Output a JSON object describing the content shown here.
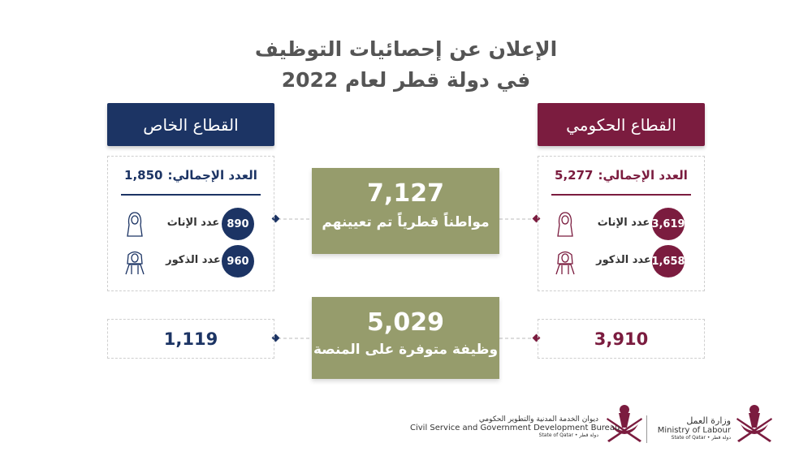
{
  "title": {
    "line1": "الإعلان عن إحصائيات التوظيف",
    "line2": "في دولة قطر لعام 2022"
  },
  "government": {
    "header": "القطاع الحكومي",
    "total_label": "العدد الإجمالي:",
    "total": "5,277",
    "female_label": "عدد الإناث",
    "female": "3,619",
    "male_label": "عدد الذكور",
    "male": "1,658",
    "jobs": "3,910"
  },
  "private": {
    "header": "القطاع الخاص",
    "total_label": "العدد الإجمالي:",
    "total": "1,850",
    "female_label": "عدد الإناث",
    "female": "890",
    "male_label": "عدد الذكور",
    "male": "960",
    "jobs": "1,119"
  },
  "center": {
    "hired": "7,127",
    "hired_label": "مواطناً قطرياً تم تعيينهم",
    "jobs": "5,029",
    "jobs_label": "وظيفة متوفرة على المنصة"
  },
  "logos": {
    "ministry": {
      "arabic": "وزارة العمل",
      "english": "Ministry of Labour",
      "state": "State of Qatar • دولة قطر"
    },
    "bureau": {
      "arabic": "ديوان الخدمة المدنية والتطوير الحكومي",
      "english": "Civil Service and Government Development Bureau",
      "state": "State of Qatar • دولة قطر"
    }
  }
}
